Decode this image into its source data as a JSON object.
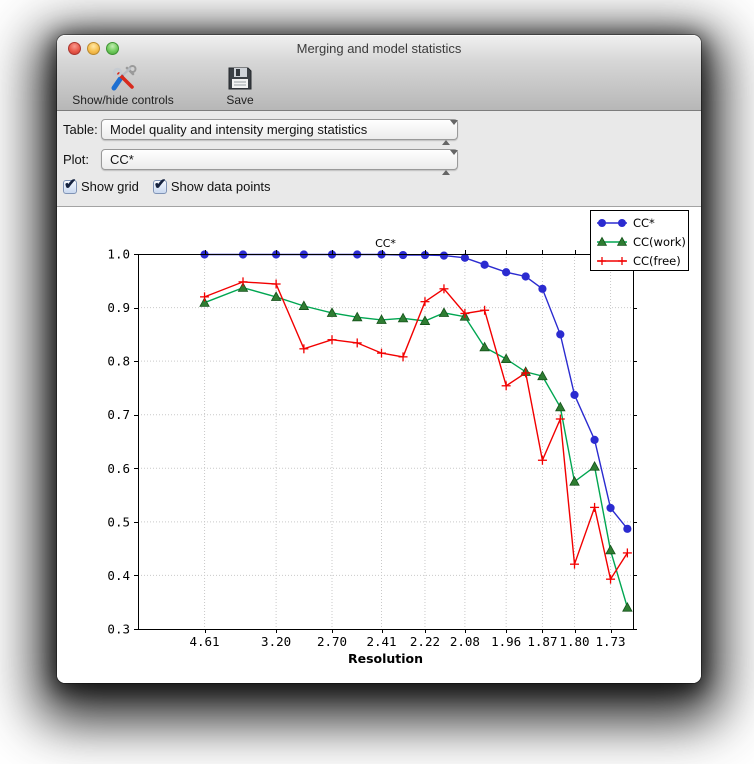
{
  "window": {
    "title": "Merging and model statistics"
  },
  "toolbar": {
    "items": [
      {
        "label": "Show/hide controls",
        "icon": "tools-icon"
      },
      {
        "label": "Save",
        "icon": "save-icon"
      }
    ]
  },
  "controls": {
    "table_label": "Table:",
    "table_value": "Model quality and intensity merging statistics",
    "plot_label": "Plot:",
    "plot_value": "CC*",
    "checkboxes": [
      {
        "label": "Show grid",
        "checked": true
      },
      {
        "label": "Show data points",
        "checked": true
      }
    ]
  },
  "chart_data": {
    "type": "line",
    "title": "CC*",
    "xlabel": "Resolution",
    "ylabel": "",
    "ylim": [
      0.3,
      1.0
    ],
    "yticks": [
      "1.0",
      "0.9",
      "0.8",
      "0.7",
      "0.6",
      "0.5",
      "0.4",
      "0.3"
    ],
    "xtick_labels": [
      "4.61",
      "3.20",
      "2.70",
      "2.41",
      "2.22",
      "2.08",
      "1.96",
      "1.87",
      "1.80",
      "1.73"
    ],
    "x_axis_note": "x is linear in 1/d^2 over range 0 to 0.35; labels are resolution d in Angstrom",
    "x_inv_d2_range": [
      0.0,
      0.35
    ],
    "grid": true,
    "show_data_points": true,
    "legend_position": "upper right",
    "x_resolutions": [
      4.61,
      3.67,
      3.2,
      2.92,
      2.7,
      2.54,
      2.41,
      2.31,
      2.22,
      2.15,
      2.08,
      2.02,
      1.96,
      1.91,
      1.87,
      1.83,
      1.8,
      1.76,
      1.73,
      1.7
    ],
    "series": [
      {
        "name": "CC*",
        "color": "#2b2bd0",
        "marker": "circle",
        "marker_color": "#2b2bd0",
        "values": [
          0.999,
          0.999,
          0.999,
          0.999,
          0.999,
          0.999,
          0.999,
          0.998,
          0.998,
          0.997,
          0.993,
          0.98,
          0.966,
          0.958,
          0.935,
          0.85,
          0.737,
          0.653,
          0.526,
          0.487
        ]
      },
      {
        "name": "CC(work)",
        "color": "#00a651",
        "marker": "triangle",
        "marker_color": "#2e7d32",
        "values": [
          0.909,
          0.937,
          0.92,
          0.903,
          0.89,
          0.882,
          0.877,
          0.88,
          0.875,
          0.89,
          0.883,
          0.826,
          0.804,
          0.78,
          0.772,
          0.714,
          0.575,
          0.603,
          0.447,
          0.34
        ]
      },
      {
        "name": "CC(free)",
        "color": "#f20000",
        "marker": "plus",
        "marker_color": "#f20000",
        "values": [
          0.92,
          0.948,
          0.944,
          0.823,
          0.84,
          0.834,
          0.815,
          0.808,
          0.911,
          0.935,
          0.889,
          0.895,
          0.754,
          0.778,
          0.615,
          0.692,
          0.421,
          0.527,
          0.393,
          0.442
        ]
      }
    ]
  }
}
